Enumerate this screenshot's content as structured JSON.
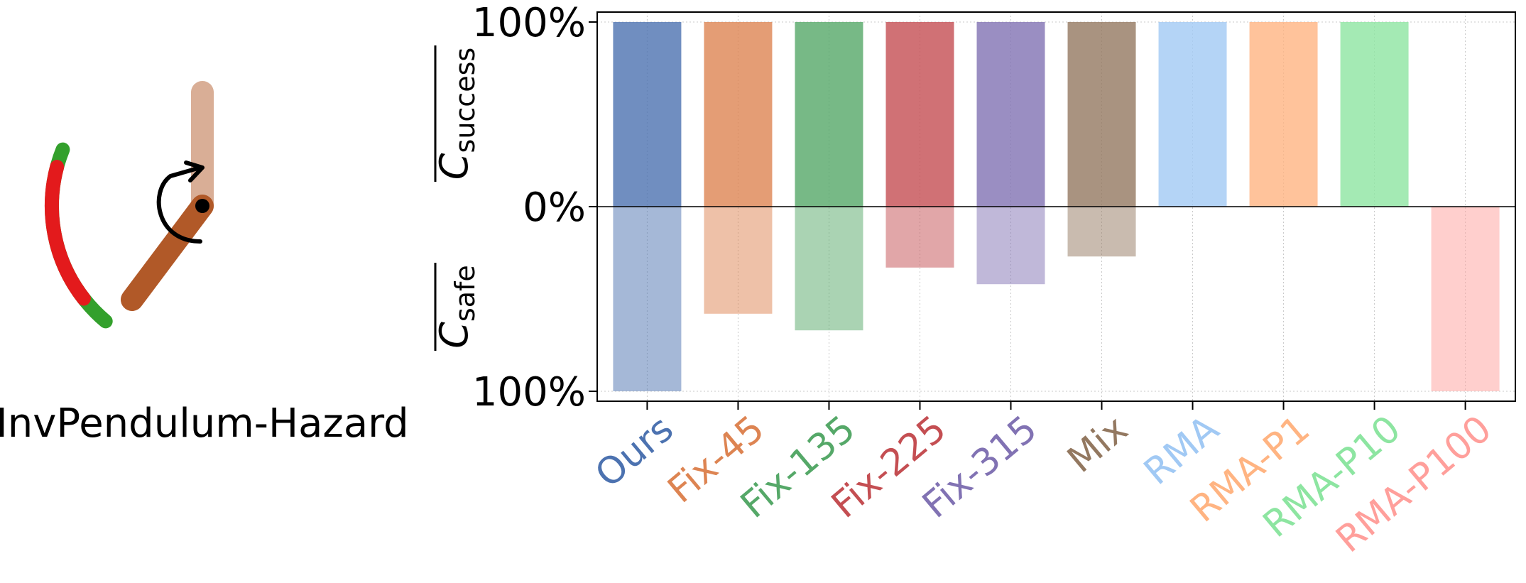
{
  "env_title": "InvPendulum-Hazard",
  "chart_data": {
    "type": "bar",
    "categories": [
      "Ours",
      "Fix-45",
      "Fix-135",
      "Fix-225",
      "Fix-315",
      "Mix",
      "RMA",
      "RMA-P1",
      "RMA-P10",
      "RMA-P100"
    ],
    "series": [
      {
        "name": "C_success",
        "direction": "up",
        "values": [
          100,
          100,
          100,
          100,
          100,
          100,
          100,
          100,
          100,
          0
        ]
      },
      {
        "name": "C_safe",
        "direction": "down",
        "values": [
          100,
          58,
          67,
          33,
          42,
          27,
          0,
          0,
          0,
          100
        ]
      }
    ],
    "colors": [
      "#4c72b0",
      "#dd8452",
      "#55a868",
      "#c44e52",
      "#8172b3",
      "#937860",
      "#a1c9f4",
      "#ffb482",
      "#8de5a1",
      "#ff9f9b"
    ],
    "label_colors": [
      "#4c72b0",
      "#dd8452",
      "#55a868",
      "#c44e52",
      "#8172b3",
      "#937860",
      "#a1c9f4",
      "#ffb482",
      "#8de5a1",
      "#ff9f9b"
    ],
    "yticks": [
      "100%",
      "0%",
      "100%"
    ],
    "ylabel_top": {
      "base": "C",
      "sub": "success"
    },
    "ylabel_bottom": {
      "base": "C",
      "sub": "safe"
    },
    "ylim": [
      -100,
      100
    ],
    "grid": true
  },
  "diagram_colors": {
    "safe_arc": "#33a02c",
    "hazard_arc": "#e31a1c",
    "pole_start": "#d9ae96",
    "pole_end": "#b15928"
  }
}
